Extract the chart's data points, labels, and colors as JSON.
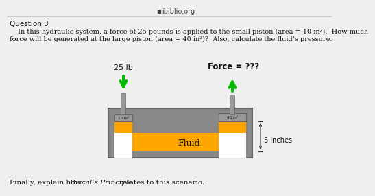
{
  "bg_color": "#efefef",
  "title_bar": "ibiblio.org",
  "question_label": "Question 3",
  "question_text_1": "In this hydraulic system, a force of 25 pounds is applied to the small piston (area = 10 in²).  How much",
  "question_text_2": "force will be generated at the large piston (area = 40 in²)?  Also, calculate the fluid’s pressure.",
  "label_left": "25 lb",
  "label_right": "Force = ???",
  "label_fluid": "Fluid",
  "label_small_area": "10 in²",
  "label_large_area": "40 in²",
  "label_5inches": "5 inches",
  "footer_pre": "Finally, explain how ",
  "footer_italic": "Pascal’s Principle",
  "footer_post": " relates to this scenario.",
  "arrow_color": "#00bb00",
  "fluid_color": "#FFA500",
  "tank_gray": "#888888",
  "tank_dark": "#666666",
  "piston_gray": "#999999",
  "white": "#ffffff"
}
